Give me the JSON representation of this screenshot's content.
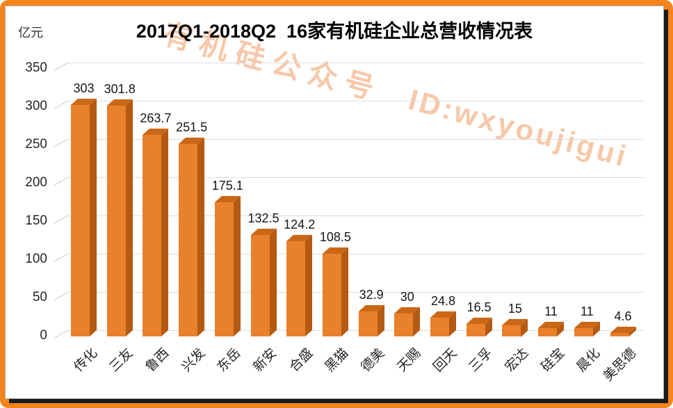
{
  "frame": {
    "border_color": "#F5841C",
    "shadow_color": "#1A1A1A",
    "panel_background": "#FFFFFF"
  },
  "watermark": {
    "part1": "有机硅公众号",
    "part2": "ID:wxyoujigui",
    "color": "#ED7D31"
  },
  "chart_data": {
    "type": "bar",
    "style": "3d-column",
    "title": "2017Q1-2018Q2  16家有机硅企业总营收情况表",
    "ylabel": "亿元",
    "xlabel": "",
    "categories": [
      "传化",
      "三友",
      "鲁西",
      "兴发",
      "东岳",
      "新安",
      "合盛",
      "黑猫",
      "德美",
      "天赐",
      "回天",
      "三孚",
      "宏达",
      "硅宝",
      "晨化",
      "美思德"
    ],
    "values": [
      303,
      301.8,
      263.7,
      251.5,
      175.1,
      132.5,
      124.2,
      108.5,
      32.9,
      30,
      24.8,
      16.5,
      15,
      11,
      11,
      4.6
    ],
    "y_ticks": [
      0,
      50,
      100,
      150,
      200,
      250,
      300,
      350
    ],
    "ylim": [
      0,
      350
    ],
    "grid": true,
    "legend": false,
    "data_labels_shown": true,
    "colors": {
      "bar_front": "#E8802C",
      "bar_side": "#B45A12",
      "bar_top": "#CB6818",
      "gridline": "#DBDBDB",
      "label_text": "#1A1A1A"
    }
  }
}
